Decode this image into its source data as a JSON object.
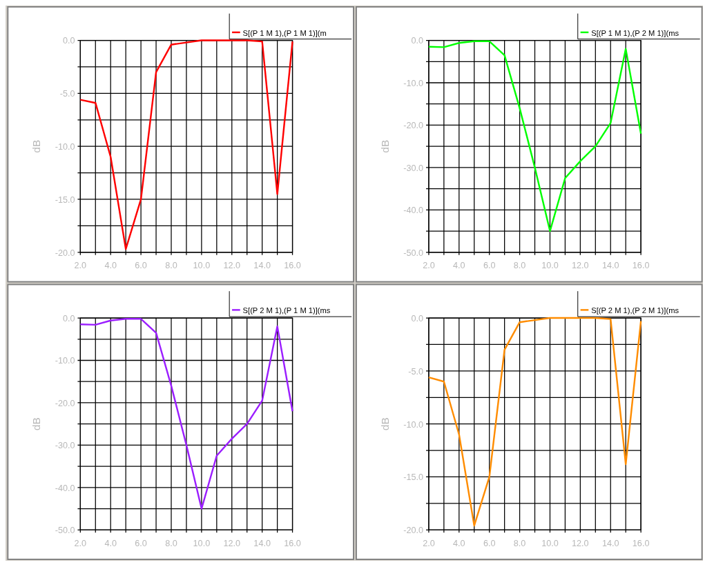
{
  "chart_data": [
    {
      "type": "line",
      "ylabel": "dB",
      "x": [
        2,
        3,
        4,
        5,
        6,
        7,
        8,
        9,
        10,
        11,
        12,
        13,
        14,
        15,
        16
      ],
      "series": [
        {
          "name": "S[(P 1 M 1),(P 1 M 1)](m",
          "color": "#ff0000",
          "values": [
            -5.6,
            -5.9,
            -11,
            -19.7,
            -15,
            -3,
            -0.4,
            -0.2,
            0,
            0,
            0,
            0,
            -0.1,
            -14.5,
            -0.1
          ]
        }
      ],
      "xlim": [
        2,
        16
      ],
      "ylim": [
        -20,
        0
      ],
      "xticks": [
        {
          "value": 2,
          "label": "2.0"
        },
        {
          "value": 3,
          "label": null
        },
        {
          "value": 4,
          "label": "4.0"
        },
        {
          "value": 5,
          "label": null
        },
        {
          "value": 6,
          "label": "6.0"
        },
        {
          "value": 7,
          "label": null
        },
        {
          "value": 8,
          "label": "8.0"
        },
        {
          "value": 9,
          "label": null
        },
        {
          "value": 10,
          "label": "10.0"
        },
        {
          "value": 11,
          "label": null
        },
        {
          "value": 12,
          "label": "12.0"
        },
        {
          "value": 13,
          "label": null
        },
        {
          "value": 14,
          "label": "14.0"
        },
        {
          "value": 15,
          "label": null
        },
        {
          "value": 16,
          "label": "16.0"
        }
      ],
      "yticks": [
        {
          "value": -20,
          "label": "-20.0"
        },
        {
          "value": -17.5,
          "label": null
        },
        {
          "value": -15,
          "label": "-15.0"
        },
        {
          "value": -12.5,
          "label": null
        },
        {
          "value": -10,
          "label": "-10.0"
        },
        {
          "value": -7.5,
          "label": null
        },
        {
          "value": -5,
          "label": "-5.0"
        },
        {
          "value": -2.5,
          "label": null
        },
        {
          "value": 0,
          "label": "0.0"
        }
      ],
      "grid": true,
      "legend": "top right",
      "marker": "none",
      "line_style": "solid"
    },
    {
      "type": "line",
      "ylabel": "dB",
      "x": [
        2,
        3,
        4,
        5,
        6,
        7,
        8,
        9,
        10,
        11,
        12,
        13,
        14,
        15,
        16
      ],
      "series": [
        {
          "name": "S[(P 1 M 1),(P 2 M 1)](ms",
          "color": "#00ff00",
          "values": [
            -1.5,
            -1.6,
            -0.6,
            -0.2,
            -0.2,
            -3.5,
            -16,
            -30,
            -45,
            -32.5,
            -28.5,
            -25,
            -19.5,
            -2,
            -22
          ]
        }
      ],
      "xlim": [
        2,
        16
      ],
      "ylim": [
        -50,
        0
      ],
      "xticks": [
        {
          "value": 2,
          "label": "2.0"
        },
        {
          "value": 3,
          "label": null
        },
        {
          "value": 4,
          "label": "4.0"
        },
        {
          "value": 5,
          "label": null
        },
        {
          "value": 6,
          "label": "6.0"
        },
        {
          "value": 7,
          "label": null
        },
        {
          "value": 8,
          "label": "8.0"
        },
        {
          "value": 9,
          "label": null
        },
        {
          "value": 10,
          "label": "10.0"
        },
        {
          "value": 11,
          "label": null
        },
        {
          "value": 12,
          "label": "12.0"
        },
        {
          "value": 13,
          "label": null
        },
        {
          "value": 14,
          "label": "14.0"
        },
        {
          "value": 15,
          "label": null
        },
        {
          "value": 16,
          "label": "16.0"
        }
      ],
      "yticks": [
        {
          "value": -50,
          "label": "-50.0"
        },
        {
          "value": -45,
          "label": null
        },
        {
          "value": -40,
          "label": "-40.0"
        },
        {
          "value": -35,
          "label": null
        },
        {
          "value": -30,
          "label": "-30.0"
        },
        {
          "value": -25,
          "label": null
        },
        {
          "value": -20,
          "label": "-20.0"
        },
        {
          "value": -15,
          "label": null
        },
        {
          "value": -10,
          "label": "-10.0"
        },
        {
          "value": -5,
          "label": null
        },
        {
          "value": 0,
          "label": "0.0"
        }
      ],
      "grid": true,
      "legend": "top right",
      "marker": "none",
      "line_style": "solid"
    },
    {
      "type": "line",
      "ylabel": "dB",
      "x": [
        2,
        3,
        4,
        5,
        6,
        7,
        8,
        9,
        10,
        11,
        12,
        13,
        14,
        15,
        16
      ],
      "series": [
        {
          "name": "S[(P 2 M 1),(P 1 M 1)](ms",
          "color": "#9b1eff",
          "values": [
            -1.5,
            -1.6,
            -0.6,
            -0.2,
            -0.2,
            -3.5,
            -16,
            -30,
            -45,
            -32.5,
            -28.5,
            -25,
            -19.5,
            -2,
            -22
          ]
        }
      ],
      "xlim": [
        2,
        16
      ],
      "ylim": [
        -50,
        0
      ],
      "xticks": [
        {
          "value": 2,
          "label": "2.0"
        },
        {
          "value": 3,
          "label": null
        },
        {
          "value": 4,
          "label": "4.0"
        },
        {
          "value": 5,
          "label": null
        },
        {
          "value": 6,
          "label": "6.0"
        },
        {
          "value": 7,
          "label": null
        },
        {
          "value": 8,
          "label": "8.0"
        },
        {
          "value": 9,
          "label": null
        },
        {
          "value": 10,
          "label": "10.0"
        },
        {
          "value": 11,
          "label": null
        },
        {
          "value": 12,
          "label": "12.0"
        },
        {
          "value": 13,
          "label": null
        },
        {
          "value": 14,
          "label": "14.0"
        },
        {
          "value": 15,
          "label": null
        },
        {
          "value": 16,
          "label": "16.0"
        }
      ],
      "yticks": [
        {
          "value": -50,
          "label": "-50.0"
        },
        {
          "value": -45,
          "label": null
        },
        {
          "value": -40,
          "label": "-40.0"
        },
        {
          "value": -35,
          "label": null
        },
        {
          "value": -30,
          "label": "-30.0"
        },
        {
          "value": -25,
          "label": null
        },
        {
          "value": -20,
          "label": "-20.0"
        },
        {
          "value": -15,
          "label": null
        },
        {
          "value": -10,
          "label": "-10.0"
        },
        {
          "value": -5,
          "label": null
        },
        {
          "value": 0,
          "label": "0.0"
        }
      ],
      "grid": true,
      "legend": "top right",
      "marker": "none",
      "line_style": "solid"
    },
    {
      "type": "line",
      "ylabel": "dB",
      "x": [
        2,
        3,
        4,
        5,
        6,
        7,
        8,
        9,
        10,
        11,
        12,
        13,
        14,
        15,
        16
      ],
      "series": [
        {
          "name": "S[(P 2 M 1),(P 2 M 1)](ms",
          "color": "#ff8c00",
          "values": [
            -5.6,
            -6,
            -11,
            -19.6,
            -15,
            -3,
            -0.4,
            -0.2,
            0,
            0,
            0,
            0,
            -0.1,
            -13.8,
            -0.3
          ]
        }
      ],
      "xlim": [
        2,
        16
      ],
      "ylim": [
        -20,
        0
      ],
      "xticks": [
        {
          "value": 2,
          "label": "2.0"
        },
        {
          "value": 3,
          "label": null
        },
        {
          "value": 4,
          "label": "4.0"
        },
        {
          "value": 5,
          "label": null
        },
        {
          "value": 6,
          "label": "6.0"
        },
        {
          "value": 7,
          "label": null
        },
        {
          "value": 8,
          "label": "8.0"
        },
        {
          "value": 9,
          "label": null
        },
        {
          "value": 10,
          "label": "10.0"
        },
        {
          "value": 11,
          "label": null
        },
        {
          "value": 12,
          "label": "12.0"
        },
        {
          "value": 13,
          "label": null
        },
        {
          "value": 14,
          "label": "14.0"
        },
        {
          "value": 15,
          "label": null
        },
        {
          "value": 16,
          "label": "16.0"
        }
      ],
      "yticks": [
        {
          "value": -20,
          "label": "-20.0"
        },
        {
          "value": -17.5,
          "label": null
        },
        {
          "value": -15,
          "label": "-15.0"
        },
        {
          "value": -12.5,
          "label": null
        },
        {
          "value": -10,
          "label": "-10.0"
        },
        {
          "value": -7.5,
          "label": null
        },
        {
          "value": -5,
          "label": "-5.0"
        },
        {
          "value": -2.5,
          "label": null
        },
        {
          "value": 0,
          "label": "0.0"
        }
      ],
      "grid": true,
      "legend": "top right",
      "marker": "none",
      "line_style": "solid"
    }
  ]
}
